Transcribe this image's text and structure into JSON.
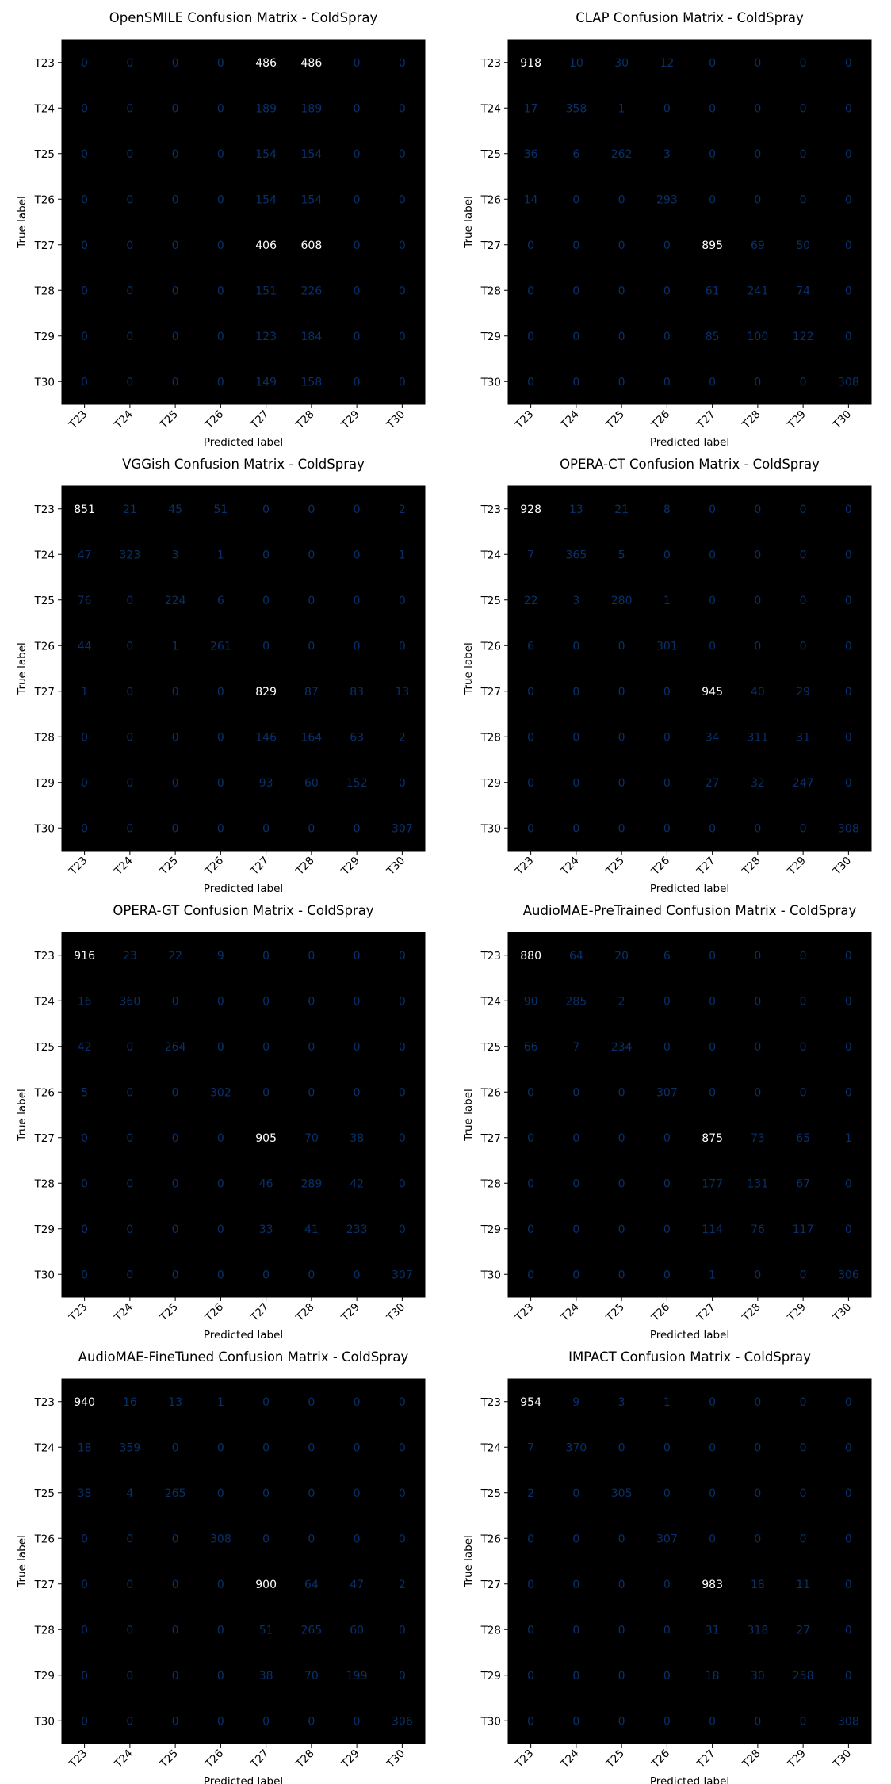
{
  "figure": {
    "xlabel": "Predicted label",
    "ylabel": "True label",
    "labels": [
      "T23",
      "T24",
      "T25",
      "T26",
      "T27",
      "T28",
      "T29",
      "T30"
    ]
  },
  "chart_data": [
    {
      "type": "heatmap",
      "title": "OpenSMILE Confusion Matrix - ColdSpray",
      "xlabel": "Predicted label",
      "ylabel": "True label",
      "categories": [
        "T23",
        "T24",
        "T25",
        "T26",
        "T27",
        "T28",
        "T29",
        "T30"
      ],
      "matrix": [
        [
          0,
          0,
          0,
          0,
          486,
          486,
          0,
          0
        ],
        [
          0,
          0,
          0,
          0,
          189,
          189,
          0,
          0
        ],
        [
          0,
          0,
          0,
          0,
          154,
          154,
          0,
          0
        ],
        [
          0,
          0,
          0,
          0,
          154,
          154,
          0,
          0
        ],
        [
          0,
          0,
          0,
          0,
          406,
          608,
          0,
          0
        ],
        [
          0,
          0,
          0,
          0,
          151,
          226,
          0,
          0
        ],
        [
          0,
          0,
          0,
          0,
          123,
          184,
          0,
          0
        ],
        [
          0,
          0,
          0,
          0,
          149,
          158,
          0,
          0
        ]
      ]
    },
    {
      "type": "heatmap",
      "title": "CLAP Confusion Matrix - ColdSpray",
      "xlabel": "Predicted label",
      "ylabel": "True label",
      "categories": [
        "T23",
        "T24",
        "T25",
        "T26",
        "T27",
        "T28",
        "T29",
        "T30"
      ],
      "matrix": [
        [
          918,
          10,
          30,
          12,
          0,
          0,
          0,
          0
        ],
        [
          17,
          358,
          1,
          0,
          0,
          0,
          0,
          0
        ],
        [
          36,
          6,
          262,
          3,
          0,
          0,
          0,
          0
        ],
        [
          14,
          0,
          0,
          293,
          0,
          0,
          0,
          0
        ],
        [
          0,
          0,
          0,
          0,
          895,
          69,
          50,
          0
        ],
        [
          0,
          0,
          0,
          0,
          61,
          241,
          74,
          0
        ],
        [
          0,
          0,
          0,
          0,
          85,
          100,
          122,
          0
        ],
        [
          0,
          0,
          0,
          0,
          0,
          0,
          0,
          308
        ]
      ]
    },
    {
      "type": "heatmap",
      "title": "VGGish Confusion Matrix - ColdSpray",
      "xlabel": "Predicted label",
      "ylabel": "True label",
      "categories": [
        "T23",
        "T24",
        "T25",
        "T26",
        "T27",
        "T28",
        "T29",
        "T30"
      ],
      "matrix": [
        [
          851,
          21,
          45,
          51,
          0,
          0,
          0,
          2
        ],
        [
          47,
          323,
          3,
          1,
          0,
          0,
          0,
          1
        ],
        [
          76,
          0,
          224,
          6,
          0,
          0,
          0,
          0
        ],
        [
          44,
          0,
          1,
          261,
          0,
          0,
          0,
          0
        ],
        [
          1,
          0,
          0,
          0,
          829,
          87,
          83,
          13
        ],
        [
          0,
          0,
          0,
          0,
          146,
          164,
          63,
          2
        ],
        [
          0,
          0,
          0,
          0,
          93,
          60,
          152,
          0
        ],
        [
          0,
          0,
          0,
          0,
          0,
          0,
          0,
          307
        ]
      ]
    },
    {
      "type": "heatmap",
      "title": "OPERA-CT Confusion Matrix - ColdSpray",
      "xlabel": "Predicted label",
      "ylabel": "True label",
      "categories": [
        "T23",
        "T24",
        "T25",
        "T26",
        "T27",
        "T28",
        "T29",
        "T30"
      ],
      "matrix": [
        [
          928,
          13,
          21,
          8,
          0,
          0,
          0,
          0
        ],
        [
          7,
          365,
          5,
          0,
          0,
          0,
          0,
          0
        ],
        [
          22,
          3,
          280,
          1,
          0,
          0,
          0,
          0
        ],
        [
          6,
          0,
          0,
          301,
          0,
          0,
          0,
          0
        ],
        [
          0,
          0,
          0,
          0,
          945,
          40,
          29,
          0
        ],
        [
          0,
          0,
          0,
          0,
          34,
          311,
          31,
          0
        ],
        [
          0,
          0,
          0,
          0,
          27,
          32,
          247,
          0
        ],
        [
          0,
          0,
          0,
          0,
          0,
          0,
          0,
          308
        ]
      ]
    },
    {
      "type": "heatmap",
      "title": "OPERA-GT Confusion Matrix - ColdSpray",
      "xlabel": "Predicted label",
      "ylabel": "True label",
      "categories": [
        "T23",
        "T24",
        "T25",
        "T26",
        "T27",
        "T28",
        "T29",
        "T30"
      ],
      "matrix": [
        [
          916,
          23,
          22,
          9,
          0,
          0,
          0,
          0
        ],
        [
          16,
          360,
          0,
          0,
          0,
          0,
          0,
          0
        ],
        [
          42,
          0,
          264,
          0,
          0,
          0,
          0,
          0
        ],
        [
          5,
          0,
          0,
          302,
          0,
          0,
          0,
          0
        ],
        [
          0,
          0,
          0,
          0,
          905,
          70,
          38,
          0
        ],
        [
          0,
          0,
          0,
          0,
          46,
          289,
          42,
          0
        ],
        [
          0,
          0,
          0,
          0,
          33,
          41,
          233,
          0
        ],
        [
          0,
          0,
          0,
          0,
          0,
          0,
          0,
          307
        ]
      ]
    },
    {
      "type": "heatmap",
      "title": "AudioMAE-PreTrained Confusion Matrix - ColdSpray",
      "xlabel": "Predicted label",
      "ylabel": "True label",
      "categories": [
        "T23",
        "T24",
        "T25",
        "T26",
        "T27",
        "T28",
        "T29",
        "T30"
      ],
      "matrix": [
        [
          880,
          64,
          20,
          6,
          0,
          0,
          0,
          0
        ],
        [
          90,
          285,
          2,
          0,
          0,
          0,
          0,
          0
        ],
        [
          66,
          7,
          234,
          0,
          0,
          0,
          0,
          0
        ],
        [
          0,
          0,
          0,
          307,
          0,
          0,
          0,
          0
        ],
        [
          0,
          0,
          0,
          0,
          875,
          73,
          65,
          1
        ],
        [
          0,
          0,
          0,
          0,
          177,
          131,
          67,
          0
        ],
        [
          0,
          0,
          0,
          0,
          114,
          76,
          117,
          0
        ],
        [
          0,
          0,
          0,
          0,
          1,
          0,
          0,
          306
        ]
      ]
    },
    {
      "type": "heatmap",
      "title": "AudioMAE-FineTuned Confusion Matrix - ColdSpray",
      "xlabel": "Predicted label",
      "ylabel": "True label",
      "categories": [
        "T23",
        "T24",
        "T25",
        "T26",
        "T27",
        "T28",
        "T29",
        "T30"
      ],
      "matrix": [
        [
          940,
          16,
          13,
          1,
          0,
          0,
          0,
          0
        ],
        [
          18,
          359,
          0,
          0,
          0,
          0,
          0,
          0
        ],
        [
          38,
          4,
          265,
          0,
          0,
          0,
          0,
          0
        ],
        [
          0,
          0,
          0,
          308,
          0,
          0,
          0,
          0
        ],
        [
          0,
          0,
          0,
          0,
          900,
          64,
          47,
          2
        ],
        [
          0,
          0,
          0,
          0,
          51,
          265,
          60,
          0
        ],
        [
          0,
          0,
          0,
          0,
          38,
          70,
          199,
          0
        ],
        [
          0,
          0,
          0,
          0,
          0,
          0,
          0,
          306
        ]
      ]
    },
    {
      "type": "heatmap",
      "title": "IMPACT Confusion Matrix - ColdSpray",
      "xlabel": "Predicted label",
      "ylabel": "True label",
      "categories": [
        "T23",
        "T24",
        "T25",
        "T26",
        "T27",
        "T28",
        "T29",
        "T30"
      ],
      "matrix": [
        [
          954,
          9,
          3,
          1,
          0,
          0,
          0,
          0
        ],
        [
          7,
          370,
          0,
          0,
          0,
          0,
          0,
          0
        ],
        [
          2,
          0,
          305,
          0,
          0,
          0,
          0,
          0
        ],
        [
          0,
          0,
          0,
          307,
          0,
          0,
          0,
          0
        ],
        [
          0,
          0,
          0,
          0,
          983,
          18,
          11,
          0
        ],
        [
          0,
          0,
          0,
          0,
          31,
          318,
          27,
          0
        ],
        [
          0,
          0,
          0,
          0,
          18,
          30,
          258,
          0
        ],
        [
          0,
          0,
          0,
          0,
          0,
          0,
          0,
          308
        ]
      ]
    }
  ]
}
